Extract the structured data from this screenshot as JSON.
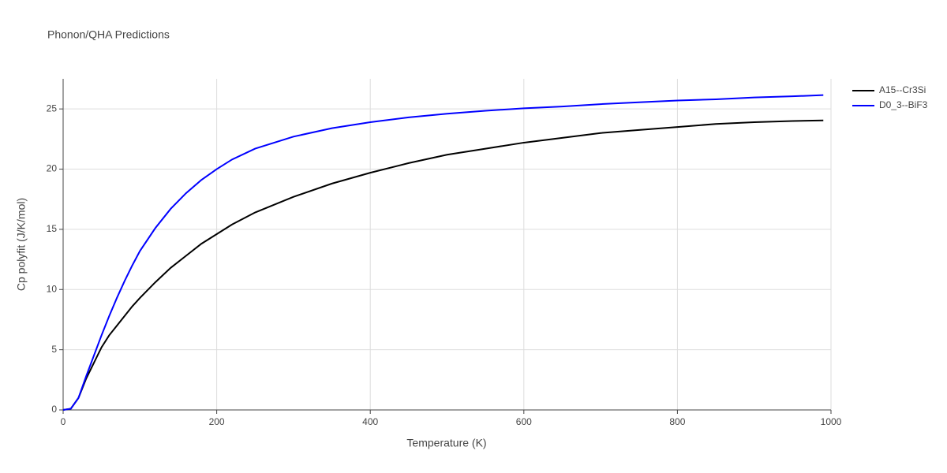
{
  "chart_data": {
    "type": "line",
    "title": "Phonon/QHA Predictions",
    "x_label": "Temperature (K)",
    "y_label": "Cp polyfit (J/K/mol)",
    "x": [
      0,
      10,
      20,
      30,
      40,
      50,
      60,
      70,
      80,
      90,
      100,
      120,
      140,
      160,
      180,
      200,
      220,
      250,
      300,
      350,
      400,
      450,
      500,
      550,
      600,
      650,
      700,
      750,
      800,
      850,
      900,
      950,
      990
    ],
    "series": [
      {
        "name": "A15--Cr3Si",
        "color": "#000000",
        "values": [
          0,
          0.1,
          1.0,
          2.6,
          3.9,
          5.2,
          6.2,
          7.0,
          7.8,
          8.6,
          9.3,
          10.6,
          11.8,
          12.8,
          13.8,
          14.6,
          15.4,
          16.4,
          17.7,
          18.8,
          19.7,
          20.5,
          21.2,
          21.7,
          22.2,
          22.6,
          23.0,
          23.25,
          23.5,
          23.75,
          23.9,
          24.0,
          24.05
        ]
      },
      {
        "name": "D0_3--BiF3",
        "color": "#0000ff",
        "values": [
          0,
          0.1,
          1.0,
          2.8,
          4.5,
          6.2,
          7.8,
          9.3,
          10.7,
          12.0,
          13.2,
          15.1,
          16.7,
          18.0,
          19.1,
          20.0,
          20.8,
          21.7,
          22.7,
          23.4,
          23.9,
          24.3,
          24.6,
          24.85,
          25.05,
          25.2,
          25.4,
          25.55,
          25.7,
          25.8,
          25.95,
          26.05,
          26.15
        ]
      }
    ],
    "xlim": [
      0,
      1000
    ],
    "xticks": [
      0,
      200,
      400,
      600,
      800,
      1000
    ],
    "ylim": [
      0,
      27.5
    ],
    "yticks": [
      0,
      5,
      10,
      15,
      20,
      25
    ],
    "grid": true,
    "legend": "top-right"
  }
}
